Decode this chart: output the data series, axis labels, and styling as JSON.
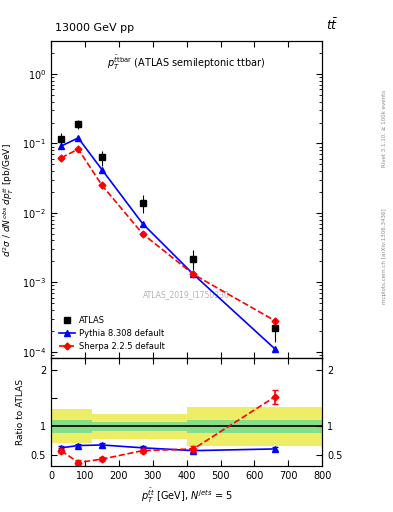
{
  "title_left": "13000 GeV pp",
  "title_right": "tt",
  "subplot_title": "$p_T^{\\bar{tbar}}$ (ATLAS semileptonic ttbar)",
  "watermark": "ATLAS_2019_I1750330",
  "right_label_top": "Rivet 3.1.10, ≥ 100k events",
  "right_label_bottom": "mcplots.cern.ch [arXiv:1306.3436]",
  "atlas_x": [
    30,
    80,
    150,
    270,
    420,
    660
  ],
  "atlas_y": [
    0.115,
    0.19,
    0.063,
    0.014,
    0.0022,
    0.00022
  ],
  "atlas_yerr_lo": [
    0.025,
    0.03,
    0.015,
    0.004,
    0.0007,
    8e-05
  ],
  "atlas_yerr_hi": [
    0.025,
    0.03,
    0.015,
    0.004,
    0.0007,
    8e-05
  ],
  "pythia_x": [
    30,
    80,
    150,
    270,
    420,
    660
  ],
  "pythia_y": [
    0.092,
    0.12,
    0.042,
    0.007,
    0.0013,
    0.00011
  ],
  "sherpa_x": [
    30,
    80,
    150,
    270,
    420,
    660
  ],
  "sherpa_y": [
    0.062,
    0.083,
    0.025,
    0.005,
    0.0013,
    0.00028
  ],
  "ratio_pythia_x": [
    30,
    80,
    150,
    270,
    420,
    660
  ],
  "ratio_pythia_y": [
    0.62,
    0.66,
    0.67,
    0.62,
    0.57,
    0.6
  ],
  "ratio_pythia_yerr": [
    0.03,
    0.03,
    0.03,
    0.03,
    0.03,
    0.03
  ],
  "ratio_sherpa_x": [
    30,
    80,
    150,
    270,
    420,
    660
  ],
  "ratio_sherpa_y": [
    0.57,
    0.36,
    0.42,
    0.57,
    0.6,
    1.52
  ],
  "ratio_sherpa_yerr": [
    0.05,
    0.04,
    0.04,
    0.05,
    0.06,
    0.12
  ],
  "band_yellow_x": [
    0,
    120,
    120,
    400,
    400,
    800
  ],
  "band_yellow_ylo": [
    0.7,
    0.7,
    0.78,
    0.78,
    0.65,
    0.65
  ],
  "band_yellow_yhi": [
    1.3,
    1.3,
    1.22,
    1.22,
    1.35,
    1.35
  ],
  "band_green_x": [
    0,
    120,
    120,
    400,
    400,
    800
  ],
  "band_green_ylo": [
    0.88,
    0.88,
    0.92,
    0.92,
    0.88,
    0.88
  ],
  "band_green_yhi": [
    1.12,
    1.12,
    1.08,
    1.08,
    1.12,
    1.12
  ],
  "xlim": [
    0,
    800
  ],
  "ylim_main": [
    8e-05,
    3.0
  ],
  "ylim_ratio": [
    0.3,
    2.2
  ],
  "color_atlas": "black",
  "color_pythia": "blue",
  "color_sherpa": "red",
  "color_green_band": "#88dd88",
  "color_yellow_band": "#eeee66",
  "legend_labels": [
    "ATLAS",
    "Pythia 8.308 default",
    "Sherpa 2.2.5 default"
  ]
}
